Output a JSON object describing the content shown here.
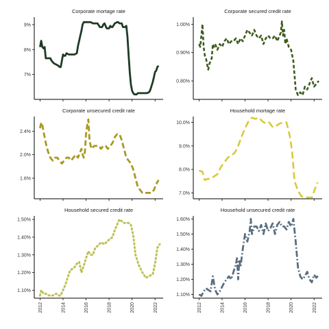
{
  "chart_data": [
    {
      "type": "line",
      "title": "Corporate mortage rate",
      "xlabel": "",
      "ylabel": "",
      "xlim": [
        2011.5,
        2022.7
      ],
      "ylim": [
        6.0,
        9.3
      ],
      "yticks": [
        7,
        8,
        9
      ],
      "ytick_labels": [
        "7%",
        "8%",
        "9%"
      ],
      "xticks": [
        2012,
        2014,
        2016,
        2018,
        2020,
        2022
      ],
      "xtick_labels": [
        "2012",
        "2014",
        "2016",
        "2018",
        "2020",
        "2022"
      ],
      "show_xticks": false,
      "grid": false,
      "color": "#1f3a24",
      "dash": "",
      "width": 2.8,
      "series": [
        {
          "x": [
            2012.0,
            2012.1,
            2012.2,
            2012.3,
            2012.4,
            2012.5,
            2012.7,
            2012.9,
            2013.0,
            2013.2,
            2013.4,
            2013.6,
            2013.7,
            2013.8,
            2014.0,
            2014.1,
            2014.2,
            2014.3,
            2014.5,
            2014.7,
            2014.9,
            2015.0,
            2015.2,
            2015.3,
            2015.4,
            2015.5,
            2015.6,
            2015.7,
            2015.8,
            2015.9,
            2016.0,
            2016.1,
            2016.2,
            2016.4,
            2016.6,
            2016.8,
            2017.0,
            2017.2,
            2017.4,
            2017.5,
            2017.6,
            2017.8,
            2018.0,
            2018.1,
            2018.2,
            2018.3,
            2018.5,
            2018.7,
            2018.8,
            2018.9,
            2019.0,
            2019.1,
            2019.2,
            2019.4,
            2019.5,
            2019.6,
            2019.7,
            2019.8,
            2019.9,
            2020.0,
            2020.1,
            2020.2,
            2020.3,
            2020.4,
            2020.5,
            2020.7,
            2020.9,
            2021.1,
            2021.3,
            2021.5,
            2021.6,
            2021.7,
            2021.8,
            2021.9,
            2022.0,
            2022.1,
            2022.2,
            2022.3
          ],
          "y": [
            8.1,
            8.35,
            8.1,
            8.05,
            8.1,
            7.65,
            7.65,
            7.65,
            7.55,
            7.45,
            7.4,
            7.35,
            7.3,
            7.3,
            7.8,
            7.75,
            7.75,
            7.85,
            7.8,
            7.8,
            7.8,
            7.8,
            7.85,
            8.15,
            8.35,
            8.55,
            8.75,
            9.0,
            9.1,
            9.1,
            9.1,
            9.1,
            9.1,
            9.1,
            9.05,
            9.05,
            9.05,
            8.9,
            8.9,
            9.0,
            9.05,
            8.85,
            8.85,
            8.95,
            8.9,
            8.9,
            9.05,
            9.1,
            9.1,
            9.05,
            9.05,
            9.05,
            8.9,
            8.9,
            8.95,
            8.5,
            7.8,
            7.1,
            6.6,
            6.35,
            6.25,
            6.2,
            6.2,
            6.2,
            6.25,
            6.25,
            6.25,
            6.25,
            6.25,
            6.3,
            6.4,
            6.55,
            6.7,
            6.9,
            7.1,
            7.15,
            7.3,
            7.35
          ]
        }
      ]
    },
    {
      "type": "line",
      "title": "Corporate secured credit rate",
      "xlabel": "",
      "ylabel": "",
      "xlim": [
        2011.5,
        2022.7
      ],
      "ylim": [
        0.735,
        1.025
      ],
      "yticks": [
        0.8,
        0.9,
        1.0
      ],
      "ytick_labels": [
        "0.80%",
        "0.90%",
        "1.00%"
      ],
      "xticks": [
        2012,
        2014,
        2016,
        2018,
        2020,
        2022
      ],
      "xtick_labels": [
        "2012",
        "2014",
        "2016",
        "2018",
        "2020",
        "2022"
      ],
      "show_xticks": false,
      "grid": false,
      "color": "#3d5a1e",
      "dash": "5,3",
      "width": 2.6,
      "series": [
        {
          "x": [
            2012.0,
            2012.1,
            2012.2,
            2012.3,
            2012.4,
            2012.5,
            2012.6,
            2012.7,
            2012.8,
            2012.9,
            2013.0,
            2013.1,
            2013.2,
            2013.3,
            2013.4,
            2013.6,
            2013.8,
            2014.0,
            2014.2,
            2014.4,
            2014.6,
            2014.8,
            2015.0,
            2015.2,
            2015.4,
            2015.6,
            2015.8,
            2016.0,
            2016.2,
            2016.4,
            2016.6,
            2016.8,
            2017.0,
            2017.2,
            2017.4,
            2017.6,
            2017.8,
            2018.0,
            2018.2,
            2018.4,
            2018.6,
            2018.8,
            2019.0,
            2019.1,
            2019.2,
            2019.3,
            2019.4,
            2019.5,
            2019.6,
            2019.8,
            2020.0,
            2020.2,
            2020.4,
            2020.6,
            2020.8,
            2021.0,
            2021.2,
            2021.4,
            2021.6,
            2021.8,
            2022.0,
            2022.2,
            2022.4
          ],
          "y": [
            0.93,
            0.92,
            0.96,
            1.0,
            0.92,
            0.89,
            0.88,
            0.86,
            0.84,
            0.86,
            0.87,
            0.88,
            0.93,
            0.92,
            0.93,
            0.91,
            0.93,
            0.92,
            0.94,
            0.95,
            0.93,
            0.94,
            0.94,
            0.95,
            0.93,
            0.95,
            0.94,
            0.96,
            0.98,
            0.97,
            0.96,
            0.98,
            0.96,
            0.95,
            0.96,
            0.93,
            0.95,
            0.96,
            0.95,
            0.95,
            0.96,
            0.94,
            0.96,
            0.97,
            1.01,
            0.96,
            0.98,
            0.93,
            0.95,
            0.92,
            0.91,
            0.87,
            0.77,
            0.75,
            0.76,
            0.75,
            0.78,
            0.77,
            0.79,
            0.81,
            0.78,
            0.79,
            0.8
          ]
        }
      ]
    },
    {
      "type": "line",
      "title": "Corporate unsecured credit rate",
      "xlabel": "",
      "ylabel": "",
      "xlim": [
        2011.5,
        2022.7
      ],
      "ylim": [
        1.25,
        2.65
      ],
      "yticks": [
        1.6,
        2.0,
        2.4
      ],
      "ytick_labels": [
        "1.6%",
        "2.0%",
        "2.4%"
      ],
      "xticks": [
        2012,
        2014,
        2016,
        2018,
        2020,
        2022
      ],
      "xtick_labels": [
        "2012",
        "2014",
        "2016",
        "2018",
        "2020",
        "2022"
      ],
      "show_xticks": false,
      "grid": false,
      "color": "#a89920",
      "dash": "8,4",
      "width": 2.8,
      "series": [
        {
          "x": [
            2012.0,
            2012.1,
            2012.2,
            2012.3,
            2012.4,
            2012.5,
            2012.7,
            2012.9,
            2013.1,
            2013.3,
            2013.5,
            2013.7,
            2013.9,
            2014.1,
            2014.3,
            2014.5,
            2014.7,
            2014.9,
            2015.1,
            2015.3,
            2015.5,
            2015.6,
            2015.7,
            2015.8,
            2015.9,
            2016.0,
            2016.1,
            2016.2,
            2016.3,
            2016.4,
            2016.5,
            2016.7,
            2016.9,
            2017.1,
            2017.3,
            2017.5,
            2017.7,
            2017.9,
            2018.1,
            2018.3,
            2018.5,
            2018.7,
            2018.9,
            2019.1,
            2019.3,
            2019.5,
            2019.7,
            2019.9,
            2020.1,
            2020.3,
            2020.5,
            2020.7,
            2020.9,
            2021.1,
            2021.3,
            2021.5,
            2021.7,
            2021.9,
            2022.1,
            2022.3
          ],
          "y": [
            2.45,
            2.55,
            2.5,
            2.4,
            2.3,
            2.2,
            2.05,
            1.95,
            1.9,
            1.95,
            1.95,
            1.9,
            1.85,
            1.9,
            1.95,
            1.95,
            1.9,
            1.95,
            2.0,
            1.95,
            2.05,
            2.1,
            2.0,
            1.95,
            2.05,
            2.35,
            2.5,
            2.6,
            2.25,
            2.15,
            2.1,
            2.15,
            2.15,
            2.15,
            2.1,
            2.15,
            2.15,
            2.1,
            2.15,
            2.2,
            2.3,
            2.35,
            2.35,
            2.25,
            2.1,
            1.95,
            1.9,
            1.85,
            1.75,
            1.6,
            1.45,
            1.4,
            1.35,
            1.35,
            1.35,
            1.35,
            1.35,
            1.4,
            1.5,
            1.57
          ]
        }
      ]
    },
    {
      "type": "line",
      "title": "Household mortage rate",
      "xlabel": "",
      "ylabel": "",
      "xlim": [
        2011.5,
        2022.7
      ],
      "ylim": [
        6.75,
        10.25
      ],
      "yticks": [
        7,
        8,
        9,
        10
      ],
      "ytick_labels": [
        "7.0%",
        "8.0%",
        "9.0%",
        "10.0%"
      ],
      "xticks": [
        2012,
        2014,
        2016,
        2018,
        2020,
        2022
      ],
      "xtick_labels": [
        "2012",
        "2014",
        "2016",
        "2018",
        "2020",
        "2022"
      ],
      "show_xticks": false,
      "grid": false,
      "color": "#d9c93a",
      "dash": "10,5",
      "width": 2.6,
      "series": [
        {
          "x": [
            2012.0,
            2012.3,
            2012.5,
            2012.8,
            2013.0,
            2013.3,
            2013.6,
            2013.9,
            2014.2,
            2014.5,
            2014.8,
            2015.1,
            2015.4,
            2015.7,
            2016.0,
            2016.3,
            2016.6,
            2016.9,
            2017.2,
            2017.5,
            2017.8,
            2018.1,
            2018.4,
            2018.7,
            2019.0,
            2019.3,
            2019.6,
            2019.9,
            2020.1,
            2020.3,
            2020.6,
            2020.9,
            2021.2,
            2021.5,
            2021.8,
            2022.1,
            2022.3
          ],
          "y": [
            7.95,
            7.9,
            7.55,
            7.6,
            7.6,
            7.7,
            7.8,
            8.1,
            8.3,
            8.5,
            8.6,
            8.7,
            9.0,
            9.4,
            9.75,
            10.05,
            10.2,
            10.15,
            10.2,
            10.05,
            9.95,
            10.0,
            9.8,
            9.85,
            9.95,
            10.0,
            10.0,
            9.4,
            8.7,
            7.5,
            7.1,
            6.85,
            6.85,
            6.8,
            6.8,
            7.2,
            7.45
          ]
        }
      ]
    },
    {
      "type": "line",
      "title": "Household secured credit rate",
      "xlabel": "",
      "ylabel": "",
      "xlim": [
        2011.5,
        2022.7
      ],
      "ylim": [
        1.055,
        1.52
      ],
      "yticks": [
        1.1,
        1.2,
        1.3,
        1.4,
        1.5
      ],
      "ytick_labels": [
        "1.10%",
        "1.20%",
        "1.30%",
        "1.40%",
        "1.50%"
      ],
      "xticks": [
        2012,
        2014,
        2016,
        2018,
        2020,
        2022
      ],
      "xtick_labels": [
        "2012",
        "2014",
        "2016",
        "2018",
        "2020",
        "2022"
      ],
      "show_xticks": true,
      "grid": false,
      "color": "#bcc253",
      "dash": "1.5,4",
      "width": 3,
      "series": [
        {
          "x": [
            2012.0,
            2012.1,
            2012.3,
            2012.5,
            2012.8,
            2013.1,
            2013.4,
            2013.6,
            2013.8,
            2014.0,
            2014.2,
            2014.4,
            2014.6,
            2014.8,
            2015.0,
            2015.2,
            2015.4,
            2015.6,
            2015.8,
            2016.0,
            2016.2,
            2016.4,
            2016.6,
            2016.8,
            2017.0,
            2017.3,
            2017.6,
            2017.9,
            2018.1,
            2018.3,
            2018.5,
            2018.7,
            2018.9,
            2019.1,
            2019.3,
            2019.5,
            2019.7,
            2019.9,
            2020.1,
            2020.3,
            2020.6,
            2020.9,
            2021.2,
            2021.5,
            2021.8,
            2022.0,
            2022.2,
            2022.4
          ],
          "y": [
            1.07,
            1.1,
            1.08,
            1.08,
            1.07,
            1.07,
            1.08,
            1.07,
            1.07,
            1.1,
            1.13,
            1.17,
            1.21,
            1.22,
            1.23,
            1.25,
            1.26,
            1.2,
            1.24,
            1.28,
            1.32,
            1.3,
            1.3,
            1.34,
            1.35,
            1.37,
            1.36,
            1.38,
            1.39,
            1.4,
            1.44,
            1.47,
            1.5,
            1.49,
            1.48,
            1.48,
            1.48,
            1.47,
            1.41,
            1.3,
            1.24,
            1.2,
            1.17,
            1.18,
            1.19,
            1.25,
            1.34,
            1.36
          ]
        }
      ]
    },
    {
      "type": "line",
      "title": "Household unsecured credit rate",
      "xlabel": "",
      "ylabel": "",
      "xlim": [
        2011.5,
        2022.7
      ],
      "ylim": [
        1.075,
        1.62
      ],
      "yticks": [
        1.1,
        1.2,
        1.3,
        1.4,
        1.5,
        1.6
      ],
      "ytick_labels": [
        "1.10%",
        "1.20%",
        "1.30%",
        "1.40%",
        "1.50%",
        "1.60%"
      ],
      "xticks": [
        2012,
        2014,
        2016,
        2018,
        2020,
        2022
      ],
      "xtick_labels": [
        "2012",
        "2014",
        "2016",
        "2018",
        "2020",
        "2022"
      ],
      "show_xticks": true,
      "grid": false,
      "color": "#5a6e80",
      "dash": "9,3,2,3",
      "width": 2.8,
      "series": [
        {
          "x": [
            2012.0,
            2012.2,
            2012.4,
            2012.6,
            2012.8,
            2013.0,
            2013.2,
            2013.4,
            2013.6,
            2013.8,
            2014.0,
            2014.2,
            2014.4,
            2014.6,
            2014.8,
            2015.0,
            2015.2,
            2015.3,
            2015.4,
            2015.5,
            2015.6,
            2015.8,
            2016.0,
            2016.2,
            2016.4,
            2016.5,
            2016.6,
            2016.8,
            2017.0,
            2017.2,
            2017.4,
            2017.6,
            2017.8,
            2018.0,
            2018.2,
            2018.4,
            2018.6,
            2018.8,
            2019.0,
            2019.2,
            2019.4,
            2019.6,
            2019.8,
            2020.0,
            2020.2,
            2020.4,
            2020.6,
            2020.8,
            2021.0,
            2021.2,
            2021.4,
            2021.6,
            2021.8,
            2022.0,
            2022.2,
            2022.4
          ],
          "y": [
            1.1,
            1.09,
            1.12,
            1.14,
            1.13,
            1.12,
            1.22,
            1.13,
            1.1,
            1.12,
            1.15,
            1.18,
            1.2,
            1.22,
            1.2,
            1.25,
            1.3,
            1.34,
            1.2,
            1.33,
            1.28,
            1.4,
            1.5,
            1.45,
            1.52,
            1.6,
            1.5,
            1.55,
            1.55,
            1.52,
            1.56,
            1.5,
            1.57,
            1.52,
            1.54,
            1.57,
            1.5,
            1.56,
            1.58,
            1.55,
            1.55,
            1.53,
            1.58,
            1.55,
            1.6,
            1.45,
            1.28,
            1.22,
            1.2,
            1.22,
            1.25,
            1.2,
            1.18,
            1.23,
            1.21,
            1.23
          ]
        }
      ]
    }
  ]
}
